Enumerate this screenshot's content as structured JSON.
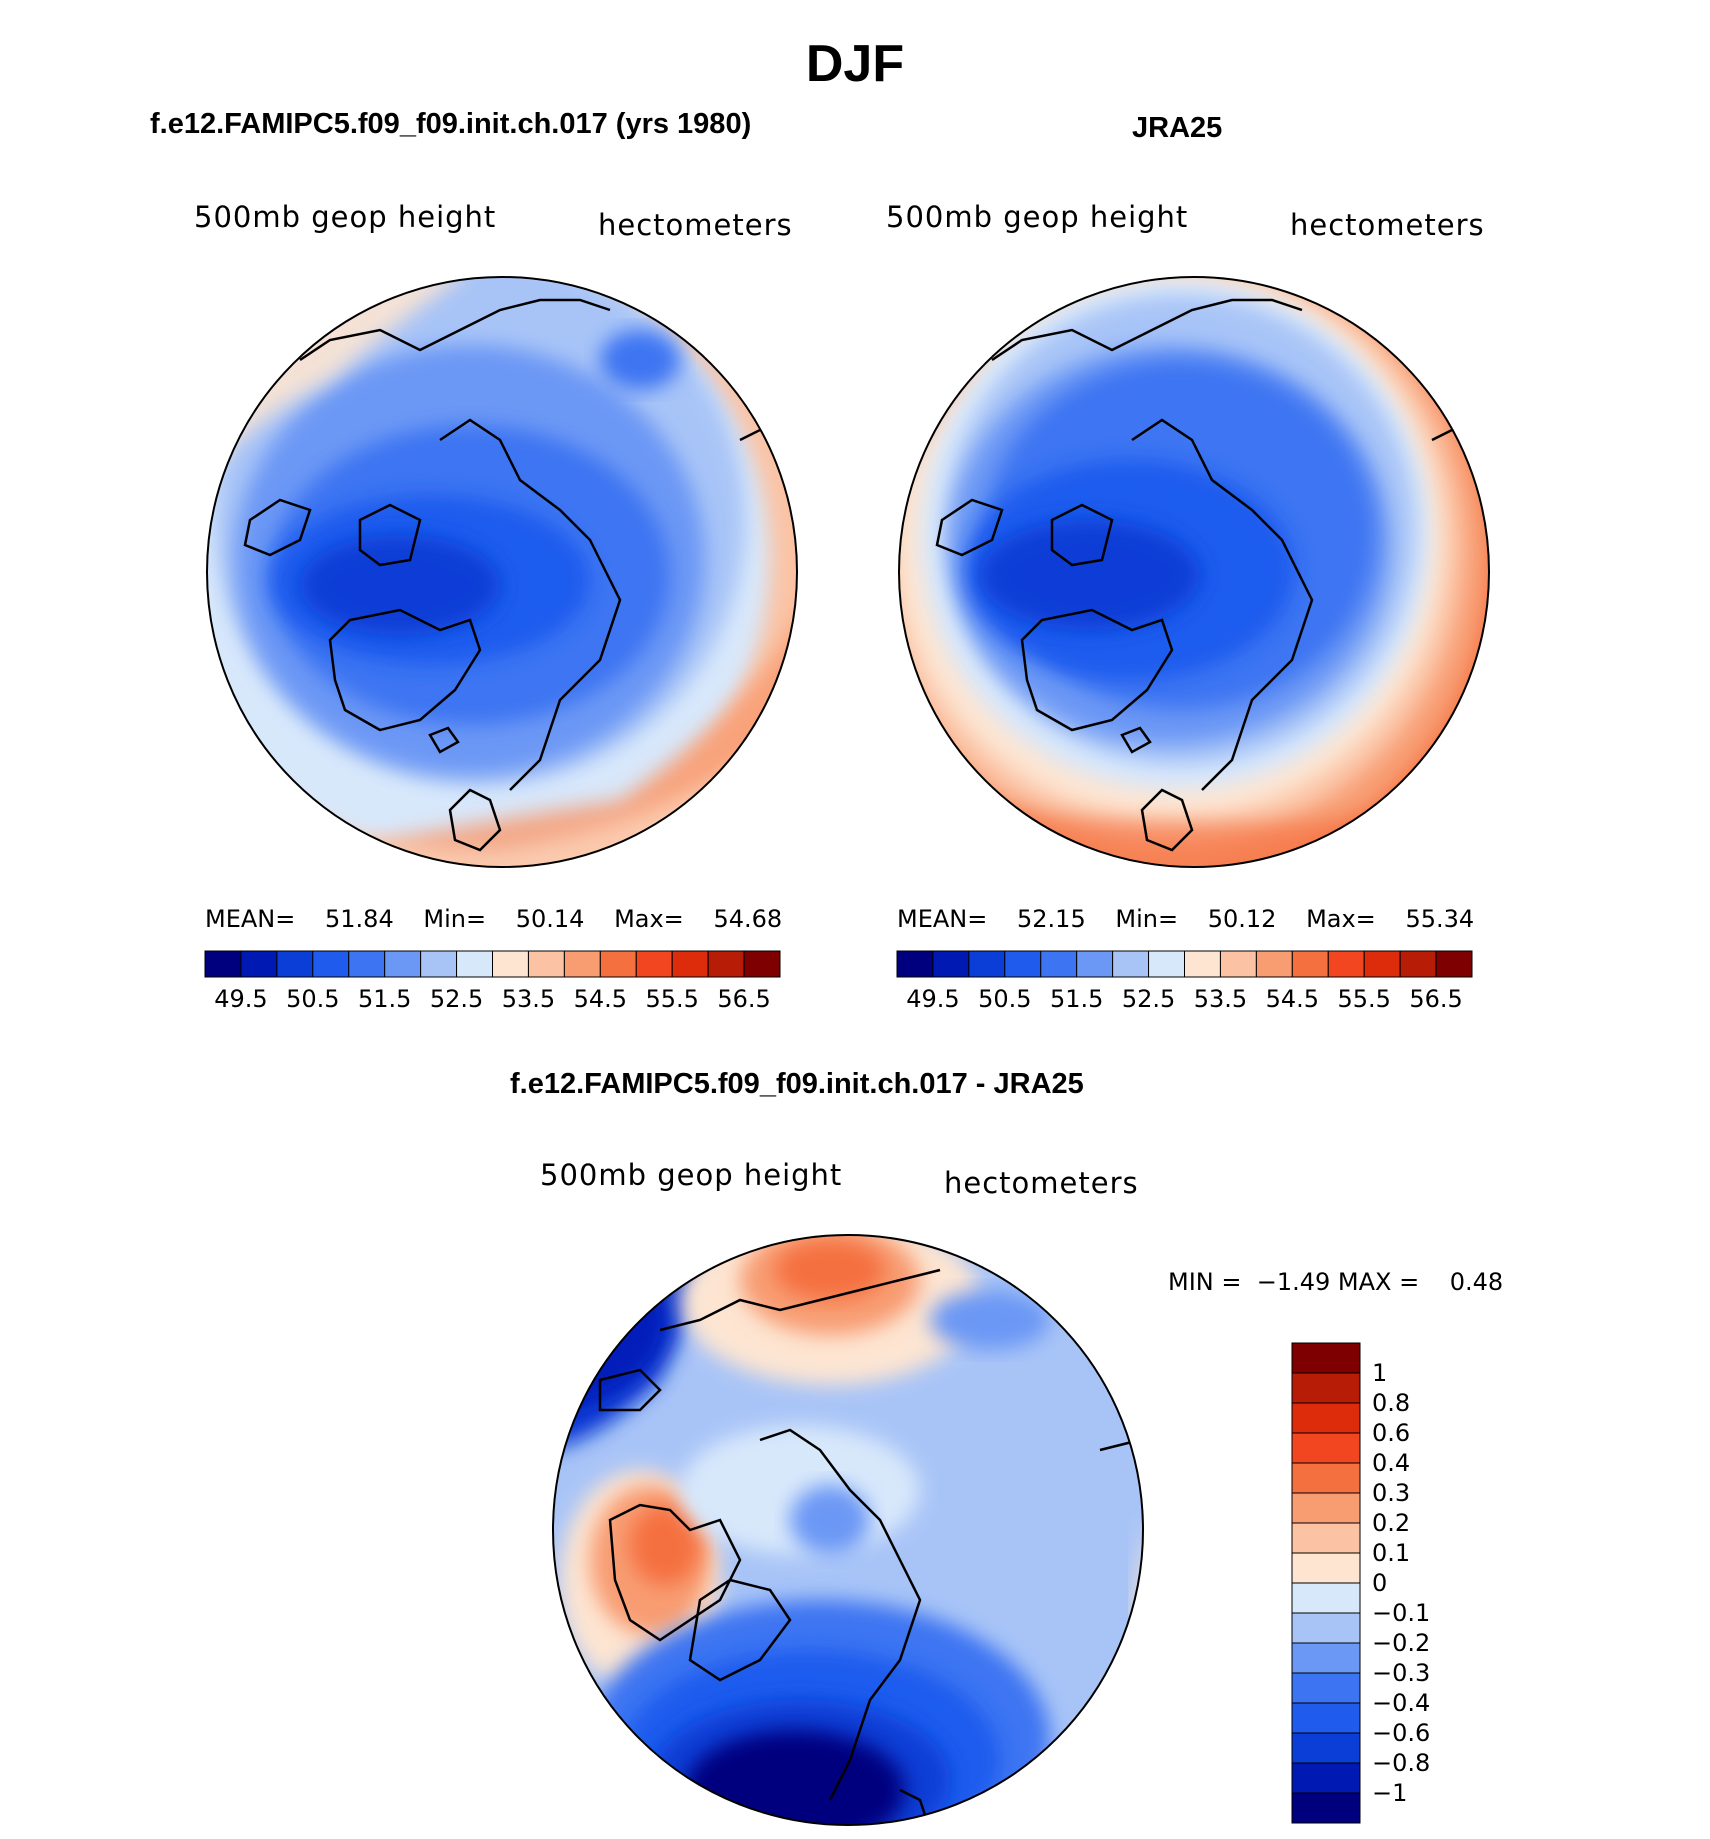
{
  "title": "DJF",
  "panels": {
    "model": {
      "header": "f.e12.FAMIPC5.f09_f09.init.ch.017 (yrs 1980)",
      "left_label": "500mb geop height",
      "right_label": "hectometers",
      "stats": {
        "mean_label": "MEAN=",
        "mean": "51.84",
        "min_label": "Min=",
        "min": "50.14",
        "max_label": "Max=",
        "max": "54.68"
      }
    },
    "obs": {
      "header": "JRA25",
      "left_label": "500mb geop height",
      "right_label": "hectometers",
      "stats": {
        "mean_label": "MEAN=",
        "mean": "52.15",
        "min_label": "Min=",
        "min": "50.12",
        "max_label": "Max=",
        "max": "55.34"
      }
    },
    "diff": {
      "header": "f.e12.FAMIPC5.f09_f09.init.ch.017 - JRA25",
      "left_label": "500mb geop height",
      "right_label": "hectometers",
      "stats_text": "MIN =  −1.49 MAX =    0.48"
    }
  },
  "colorbar_abs": {
    "colors": [
      "#00007f",
      "#0019b3",
      "#0a3ed6",
      "#1f5cee",
      "#3d74f2",
      "#6c98f5",
      "#a8c4f7",
      "#d8e8fb",
      "#fde5d2",
      "#fbc3a4",
      "#f89c72",
      "#f5703f",
      "#f24621",
      "#dd2c0c",
      "#b71c06",
      "#7f0000"
    ],
    "tick_labels": [
      "49.5",
      "50.5",
      "51.5",
      "52.5",
      "53.5",
      "54.5",
      "55.5",
      "56.5"
    ]
  },
  "colorbar_diff": {
    "colors": [
      "#00007f",
      "#0019b3",
      "#0a3ed6",
      "#1f5cee",
      "#3d74f2",
      "#6c98f5",
      "#a8c4f7",
      "#d8e8fb",
      "#fde5d2",
      "#fbc3a4",
      "#f89c72",
      "#f5703f",
      "#f24621",
      "#dd2c0c",
      "#b71c06",
      "#7f0000"
    ],
    "tick_labels": [
      "1",
      "0.8",
      "0.6",
      "0.4",
      "0.3",
      "0.2",
      "0.1",
      "0",
      "−0.1",
      "−0.2",
      "−0.3",
      "−0.4",
      "−0.6",
      "−0.8",
      "−1"
    ]
  }
}
